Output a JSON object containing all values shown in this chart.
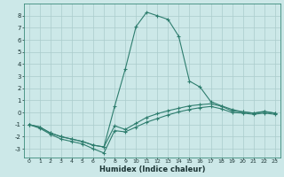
{
  "title": "",
  "xlabel": "Humidex (Indice chaleur)",
  "bg_color": "#cce8e8",
  "grid_color": "#aacccc",
  "line_color": "#2e7d6e",
  "xlim": [
    -0.5,
    23.5
  ],
  "ylim": [
    -3.7,
    9.0
  ],
  "xticks": [
    0,
    1,
    2,
    3,
    4,
    5,
    6,
    7,
    8,
    9,
    10,
    11,
    12,
    13,
    14,
    15,
    16,
    17,
    18,
    19,
    20,
    21,
    22,
    23
  ],
  "yticks": [
    -3,
    -2,
    -1,
    0,
    1,
    2,
    3,
    4,
    5,
    6,
    7,
    8
  ],
  "line1_x": [
    0,
    1,
    2,
    3,
    4,
    5,
    6,
    7,
    8,
    9,
    10,
    11,
    12,
    13,
    14,
    15,
    16,
    17,
    18,
    19,
    20,
    21,
    22,
    23
  ],
  "line1_y": [
    -1.0,
    -1.3,
    -1.8,
    -2.2,
    -2.4,
    -2.6,
    -3.0,
    -3.35,
    -1.5,
    -1.6,
    -1.2,
    -0.8,
    -0.5,
    -0.2,
    0.05,
    0.25,
    0.4,
    0.5,
    0.3,
    0.0,
    -0.05,
    -0.15,
    -0.05,
    -0.15
  ],
  "line2_x": [
    0,
    1,
    2,
    3,
    4,
    5,
    6,
    7,
    8,
    9,
    10,
    11,
    12,
    13,
    14,
    15,
    16,
    17,
    18,
    19,
    20,
    21,
    22,
    23
  ],
  "line2_y": [
    -1.0,
    -1.2,
    -1.7,
    -2.0,
    -2.2,
    -2.4,
    -2.7,
    -2.85,
    -1.1,
    -1.4,
    -0.9,
    -0.4,
    -0.1,
    0.15,
    0.35,
    0.55,
    0.65,
    0.72,
    0.52,
    0.12,
    0.05,
    -0.05,
    0.05,
    -0.05
  ],
  "line3_x": [
    0,
    1,
    2,
    3,
    4,
    5,
    6,
    7,
    8,
    9,
    10,
    11,
    12,
    13,
    14,
    15,
    16,
    17,
    18,
    19,
    20,
    21,
    22,
    23
  ],
  "line3_y": [
    -1.0,
    -1.2,
    -1.7,
    -2.0,
    -2.2,
    -2.4,
    -2.7,
    -2.85,
    0.5,
    3.6,
    7.1,
    8.3,
    8.0,
    7.7,
    6.3,
    2.6,
    2.1,
    0.9,
    0.55,
    0.25,
    0.05,
    -0.05,
    0.1,
    -0.05
  ],
  "marker_size": 2.5,
  "linewidth": 0.8,
  "xlabel_fontsize": 6,
  "tick_labelsize": 4.5
}
